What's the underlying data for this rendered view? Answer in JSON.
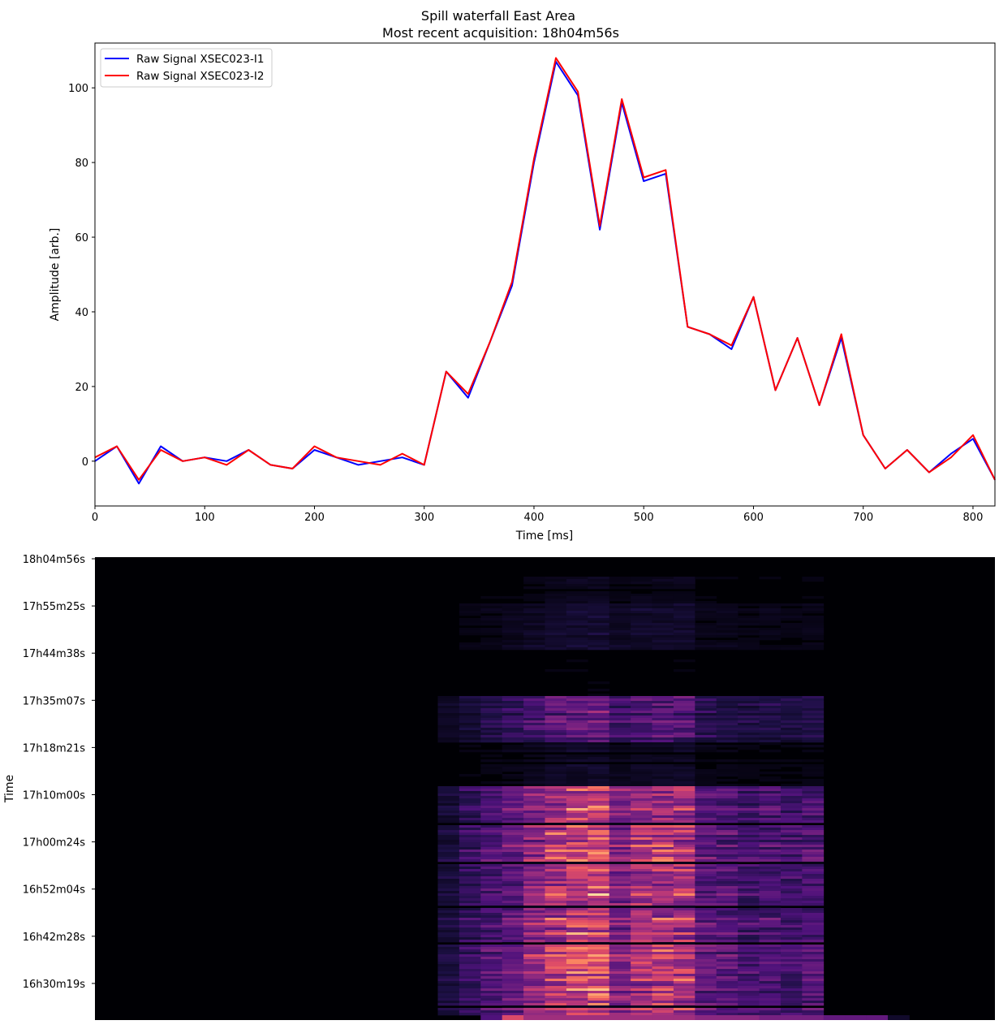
{
  "title": "Spill waterfall East Area",
  "subtitle": "Most recent acquisition: 18h04m56s",
  "chart_data": [
    {
      "type": "line",
      "xlabel": "Time [ms]",
      "ylabel": "Amplitude [arb.]",
      "xlim": [
        0,
        820
      ],
      "ylim": [
        -12,
        112
      ],
      "xticks": [
        0,
        100,
        200,
        300,
        400,
        500,
        600,
        700,
        800
      ],
      "yticks": [
        0,
        20,
        40,
        60,
        80,
        100
      ],
      "grid": false,
      "legend_position": "top-left",
      "x": [
        0,
        20,
        40,
        60,
        80,
        100,
        120,
        140,
        160,
        180,
        200,
        220,
        240,
        260,
        280,
        300,
        320,
        340,
        360,
        380,
        400,
        420,
        440,
        460,
        480,
        500,
        520,
        540,
        560,
        580,
        600,
        620,
        640,
        660,
        680,
        700,
        720,
        740,
        760,
        780,
        800,
        820
      ],
      "series": [
        {
          "name": "Raw Signal XSEC023-I1",
          "color": "#0000ff",
          "values": [
            0,
            4,
            -6,
            4,
            0,
            1,
            0,
            3,
            -1,
            -2,
            3,
            1,
            -1,
            0,
            1,
            -1,
            24,
            17,
            32,
            47,
            80,
            107,
            98,
            62,
            96,
            75,
            77,
            36,
            34,
            30,
            44,
            19,
            33,
            15,
            33,
            7,
            -2,
            3,
            -3,
            2,
            6,
            -5
          ]
        },
        {
          "name": "Raw Signal XSEC023-I2",
          "color": "#ff0000",
          "values": [
            1,
            4,
            -5,
            3,
            0,
            1,
            -1,
            3,
            -1,
            -2,
            4,
            1,
            0,
            -1,
            2,
            -1,
            24,
            18,
            32,
            48,
            81,
            108,
            99,
            63,
            97,
            76,
            78,
            36,
            34,
            31,
            44,
            19,
            33,
            15,
            34,
            7,
            -2,
            3,
            -3,
            1,
            7,
            -5
          ]
        }
      ]
    },
    {
      "type": "heatmap",
      "ylabel": "Time",
      "colormap": "magma",
      "yticks": [
        "18h04m56s",
        "17h55m25s",
        "17h44m38s",
        "17h35m07s",
        "17h18m21s",
        "17h10m00s",
        "17h00m24s",
        "16h52m04s",
        "16h42m28s",
        "16h30m19s"
      ],
      "x_bins": 42,
      "signal_bins": [
        16,
        34
      ],
      "profile": [
        0.12,
        0.2,
        0.26,
        0.33,
        0.43,
        0.53,
        0.6,
        0.63,
        0.4,
        0.5,
        0.53,
        0.53,
        0.3,
        0.28,
        0.24,
        0.26,
        0.24,
        0.27,
        0.24,
        0.26
      ],
      "period_intensity": [
        0.08,
        0.15,
        0.04,
        0.5,
        0.12,
        0.9,
        0.95,
        0.95,
        0.95,
        0.92
      ],
      "bottom_row": [
        0,
        0,
        0,
        0,
        0,
        0,
        0,
        0,
        0,
        0,
        0,
        0,
        0,
        0,
        0,
        0,
        0,
        0,
        0.25,
        0.6,
        0.45,
        0.45,
        0.45,
        0.45,
        0.45,
        0.45,
        0.45,
        0.45,
        0.4,
        0.4,
        0.4,
        0.35,
        0.35,
        0.35,
        0.3,
        0.3,
        0.3,
        0.08,
        0,
        0,
        0,
        0
      ]
    }
  ]
}
